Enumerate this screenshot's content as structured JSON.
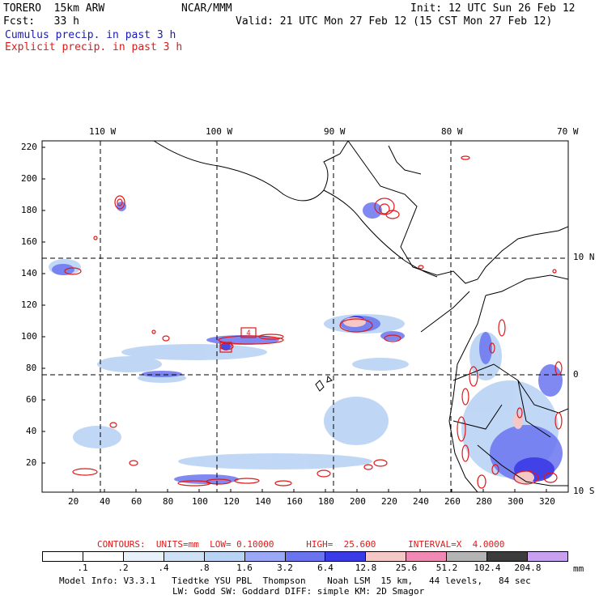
{
  "header": {
    "model": "TORERO  15km ARW",
    "org": "NCAR/MMM",
    "init": "Init: 12 UTC Sun 26 Feb 12",
    "fcst": "Fcst:   33 h",
    "valid": "Valid: 21 UTC Mon 27 Feb 12 (15 CST Mon 27 Feb 12)",
    "cumulus": "Cumulus precip. in past 3 h",
    "explicit": "Explicit precip. in past 3 h"
  },
  "map": {
    "top_lon_labels": [
      "110 W",
      "100 W",
      "90 W",
      "80 W",
      "70 W"
    ],
    "right_lat_labels": [
      "10 N",
      "0",
      "10 S"
    ],
    "left_y_labels": [
      "220",
      "200",
      "180",
      "160",
      "140",
      "120",
      "100",
      "80",
      "60",
      "40",
      "20"
    ],
    "bottom_x_labels": [
      "20",
      "40",
      "60",
      "80",
      "100",
      "120",
      "140",
      "160",
      "180",
      "200",
      "220",
      "240",
      "260",
      "280",
      "300",
      "320"
    ],
    "box_label": "4"
  },
  "contours": {
    "text": "CONTOURS:  UNITS=mm  LOW= 0.10000      HIGH=  25.600      INTERVAL=X  4.0000"
  },
  "legend": {
    "colors": [
      "#ffffff",
      "#ffffff",
      "#e8f1fa",
      "#cfe2f5",
      "#b9d3f5",
      "#9aa8f5",
      "#6a74ee",
      "#3a3ae6",
      "#f5c8c8",
      "#f08ab4",
      "#b4b4b4",
      "#3c3c3c",
      "#c8a0f0"
    ],
    "labels": [
      ".1",
      ".2",
      ".4",
      ".8",
      "1.6",
      "3.2",
      "6.4",
      "12.8",
      "25.6",
      "51.2",
      "102.4",
      "204.8"
    ],
    "unit": "mm"
  },
  "footer": {
    "line1": "Model Info: V3.3.1   Tiedtke YSU PBL  Thompson    Noah LSM  15 km,   44 levels,   84 sec",
    "line2": "LW: Godd SW: Goddard DIFF: simple KM: 2D Smagor"
  }
}
